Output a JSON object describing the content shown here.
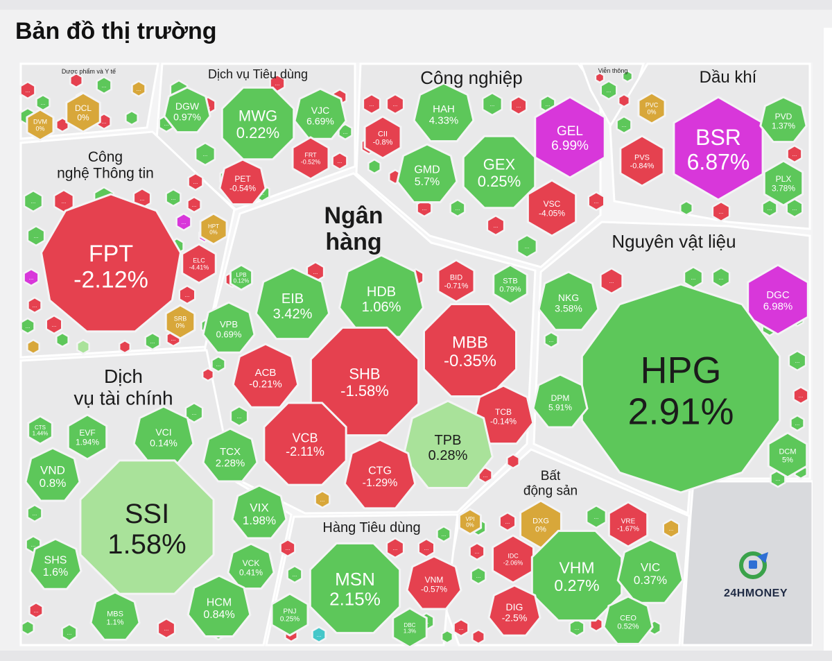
{
  "title": "Bản đồ thị trường",
  "logo": "24HMONEY",
  "colors": {
    "green": "#5dc75a",
    "red": "#e5414f",
    "purple": "#d837da",
    "yellow": "#d8a73a",
    "lightgreen": "#a9e29a",
    "cyan": "#45c7c9",
    "gap": "#f4f4f5"
  },
  "sectors": [
    {
      "id": "duoc-pham",
      "label": "Dược phẩm và Y tế"
    },
    {
      "id": "dich-vu-tieu-dung",
      "label": "Dịch vụ Tiêu dùng"
    },
    {
      "id": "cong-nghiep",
      "label": "Công nghiệp"
    },
    {
      "id": "vien-thong",
      "label": "Viễn thông"
    },
    {
      "id": "dau-khi",
      "label": "Dầu khí"
    },
    {
      "id": "cong-nghe-thong-tin",
      "label": "Công\nnghệ Thông tin"
    },
    {
      "id": "ngan-hang",
      "label": "Ngân\nhàng"
    },
    {
      "id": "nguyen-vat-lieu",
      "label": "Nguyên vật liệu"
    },
    {
      "id": "dich-vu-tai-chinh",
      "label": "Dịch\nvụ tài chính"
    },
    {
      "id": "bat-dong-san",
      "label": "Bất\nđộng sản"
    },
    {
      "id": "hang-tieu-dung",
      "label": "Hàng Tiêu dùng"
    }
  ],
  "tiles": [
    {
      "sector": "duoc-pham",
      "ticker": "DCL",
      "change": "0%",
      "color": "yellow"
    },
    {
      "sector": "duoc-pham",
      "ticker": "DVM",
      "change": "0%",
      "color": "yellow"
    },
    {
      "sector": "dich-vu-tieu-dung",
      "ticker": "DGW",
      "change": "0.97%",
      "color": "green"
    },
    {
      "sector": "dich-vu-tieu-dung",
      "ticker": "MWG",
      "change": "0.22%",
      "color": "green"
    },
    {
      "sector": "dich-vu-tieu-dung",
      "ticker": "VJC",
      "change": "6.69%",
      "color": "green"
    },
    {
      "sector": "dich-vu-tieu-dung",
      "ticker": "FRT",
      "change": "-0.52%",
      "color": "red"
    },
    {
      "sector": "dich-vu-tieu-dung",
      "ticker": "PET",
      "change": "-0.54%",
      "color": "red"
    },
    {
      "sector": "cong-nghiep",
      "ticker": "HAH",
      "change": "4.33%",
      "color": "green"
    },
    {
      "sector": "cong-nghiep",
      "ticker": "CII",
      "change": "-0.8%",
      "color": "red"
    },
    {
      "sector": "cong-nghiep",
      "ticker": "GEL",
      "change": "6.99%",
      "color": "purple"
    },
    {
      "sector": "cong-nghiep",
      "ticker": "GMD",
      "change": "5.7%",
      "color": "green"
    },
    {
      "sector": "cong-nghiep",
      "ticker": "GEX",
      "change": "0.25%",
      "color": "green"
    },
    {
      "sector": "cong-nghiep",
      "ticker": "VSC",
      "change": "-4.05%",
      "color": "red"
    },
    {
      "sector": "dau-khi",
      "ticker": "PVC",
      "change": "0%",
      "color": "yellow"
    },
    {
      "sector": "dau-khi",
      "ticker": "BSR",
      "change": "6.87%",
      "color": "purple"
    },
    {
      "sector": "dau-khi",
      "ticker": "PVD",
      "change": "1.37%",
      "color": "green"
    },
    {
      "sector": "dau-khi",
      "ticker": "PVS",
      "change": "-0.84%",
      "color": "red"
    },
    {
      "sector": "dau-khi",
      "ticker": "PLX",
      "change": "3.78%",
      "color": "green"
    },
    {
      "sector": "cong-nghe-thong-tin",
      "ticker": "FPT",
      "change": "-2.12%",
      "color": "red"
    },
    {
      "sector": "cong-nghe-thong-tin",
      "ticker": "HPT",
      "change": "0%",
      "color": "yellow"
    },
    {
      "sector": "cong-nghe-thong-tin",
      "ticker": "ELC",
      "change": "-4.41%",
      "color": "red"
    },
    {
      "sector": "cong-nghe-thong-tin",
      "ticker": "SRB",
      "change": "0%",
      "color": "yellow"
    },
    {
      "sector": "ngan-hang",
      "ticker": "LPB",
      "change": "0.12%",
      "color": "green"
    },
    {
      "sector": "ngan-hang",
      "ticker": "EIB",
      "change": "3.42%",
      "color": "green"
    },
    {
      "sector": "ngan-hang",
      "ticker": "HDB",
      "change": "1.06%",
      "color": "green"
    },
    {
      "sector": "ngan-hang",
      "ticker": "BID",
      "change": "-0.71%",
      "color": "red"
    },
    {
      "sector": "ngan-hang",
      "ticker": "STB",
      "change": "0.79%",
      "color": "green"
    },
    {
      "sector": "ngan-hang",
      "ticker": "VPB",
      "change": "0.69%",
      "color": "green"
    },
    {
      "sector": "ngan-hang",
      "ticker": "MBB",
      "change": "-0.35%",
      "color": "red"
    },
    {
      "sector": "ngan-hang",
      "ticker": "ACB",
      "change": "-0.21%",
      "color": "red"
    },
    {
      "sector": "ngan-hang",
      "ticker": "SHB",
      "change": "-1.58%",
      "color": "red"
    },
    {
      "sector": "ngan-hang",
      "ticker": "TCB",
      "change": "-0.14%",
      "color": "red"
    },
    {
      "sector": "ngan-hang",
      "ticker": "VCB",
      "change": "-2.11%",
      "color": "red"
    },
    {
      "sector": "ngan-hang",
      "ticker": "TPB",
      "change": "0.28%",
      "color": "lightgreen"
    },
    {
      "sector": "ngan-hang",
      "ticker": "CTG",
      "change": "-1.29%",
      "color": "red"
    },
    {
      "sector": "nguyen-vat-lieu",
      "ticker": "NKG",
      "change": "3.58%",
      "color": "green"
    },
    {
      "sector": "nguyen-vat-lieu",
      "ticker": "DGC",
      "change": "6.98%",
      "color": "purple"
    },
    {
      "sector": "nguyen-vat-lieu",
      "ticker": "HPG",
      "change": "2.91%",
      "color": "green"
    },
    {
      "sector": "nguyen-vat-lieu",
      "ticker": "DPM",
      "change": "5.91%",
      "color": "green"
    },
    {
      "sector": "nguyen-vat-lieu",
      "ticker": "DCM",
      "change": "5%",
      "color": "green"
    },
    {
      "sector": "dich-vu-tai-chinh",
      "ticker": "CTS",
      "change": "1.44%",
      "color": "green"
    },
    {
      "sector": "dich-vu-tai-chinh",
      "ticker": "EVF",
      "change": "1.94%",
      "color": "green"
    },
    {
      "sector": "dich-vu-tai-chinh",
      "ticker": "VCI",
      "change": "0.14%",
      "color": "green"
    },
    {
      "sector": "dich-vu-tai-chinh",
      "ticker": "TCX",
      "change": "2.28%",
      "color": "green"
    },
    {
      "sector": "dich-vu-tai-chinh",
      "ticker": "VND",
      "change": "0.8%",
      "color": "green"
    },
    {
      "sector": "dich-vu-tai-chinh",
      "ticker": "SSI",
      "change": "1.58%",
      "color": "lightgreen"
    },
    {
      "sector": "dich-vu-tai-chinh",
      "ticker": "VIX",
      "change": "1.98%",
      "color": "green"
    },
    {
      "sector": "dich-vu-tai-chinh",
      "ticker": "SHS",
      "change": "1.6%",
      "color": "green"
    },
    {
      "sector": "dich-vu-tai-chinh",
      "ticker": "VCK",
      "change": "0.41%",
      "color": "green"
    },
    {
      "sector": "dich-vu-tai-chinh",
      "ticker": "HCM",
      "change": "0.84%",
      "color": "green"
    },
    {
      "sector": "dich-vu-tai-chinh",
      "ticker": "MBS",
      "change": "1.1%",
      "color": "green"
    },
    {
      "sector": "bat-dong-san",
      "ticker": "VPI",
      "change": "0%",
      "color": "yellow"
    },
    {
      "sector": "bat-dong-san",
      "ticker": "DXG",
      "change": "0%",
      "color": "yellow"
    },
    {
      "sector": "bat-dong-san",
      "ticker": "VRE",
      "change": "-1.67%",
      "color": "red"
    },
    {
      "sector": "bat-dong-san",
      "ticker": "IDC",
      "change": "-2.06%",
      "color": "red"
    },
    {
      "sector": "bat-dong-san",
      "ticker": "VHM",
      "change": "0.27%",
      "color": "green"
    },
    {
      "sector": "bat-dong-san",
      "ticker": "VIC",
      "change": "0.37%",
      "color": "green"
    },
    {
      "sector": "bat-dong-san",
      "ticker": "DIG",
      "change": "-2.5%",
      "color": "red"
    },
    {
      "sector": "bat-dong-san",
      "ticker": "CEO",
      "change": "0.52%",
      "color": "green"
    },
    {
      "sector": "hang-tieu-dung",
      "ticker": "MSN",
      "change": "2.15%",
      "color": "green"
    },
    {
      "sector": "hang-tieu-dung",
      "ticker": "VNM",
      "change": "-0.57%",
      "color": "red"
    },
    {
      "sector": "hang-tieu-dung",
      "ticker": "PNJ",
      "change": "0.25%",
      "color": "green"
    },
    {
      "sector": "hang-tieu-dung",
      "ticker": "DBC",
      "change": "1.3%",
      "color": "green"
    }
  ],
  "small_cells": [
    {
      "sector": "duoc-pham",
      "color": "red"
    },
    {
      "sector": "duoc-pham",
      "color": "green"
    },
    {
      "sector": "duoc-pham",
      "color": "red"
    },
    {
      "sector": "duoc-pham",
      "color": "green"
    },
    {
      "sector": "duoc-pham",
      "color": "yellow"
    },
    {
      "sector": "duoc-pham",
      "color": "green"
    },
    {
      "sector": "duoc-pham",
      "color": "red"
    },
    {
      "sector": "duoc-pham",
      "color": "green"
    },
    {
      "sector": "duoc-pham",
      "color": "red"
    },
    {
      "sector": "duoc-pham",
      "color": "green"
    },
    {
      "sector": "dich-vu-tieu-dung",
      "color": "green"
    },
    {
      "sector": "dich-vu-tieu-dung",
      "color": "green"
    },
    {
      "sector": "dich-vu-tieu-dung",
      "color": "red"
    },
    {
      "sector": "dich-vu-tieu-dung",
      "color": "green"
    },
    {
      "sector": "dich-vu-tieu-dung",
      "color": "red"
    },
    {
      "sector": "dich-vu-tieu-dung",
      "color": "green"
    },
    {
      "sector": "dich-vu-tieu-dung",
      "color": "red"
    },
    {
      "sector": "dich-vu-tieu-dung",
      "color": "green"
    },
    {
      "sector": "dich-vu-tieu-dung",
      "color": "red"
    },
    {
      "sector": "dich-vu-tieu-dung",
      "color": "green"
    },
    {
      "sector": "dich-vu-tieu-dung",
      "color": "red"
    },
    {
      "sector": "dich-vu-tieu-dung",
      "color": "green"
    },
    {
      "sector": "cong-nghiep",
      "color": "red"
    },
    {
      "sector": "cong-nghiep",
      "color": "red"
    },
    {
      "sector": "cong-nghiep",
      "color": "green"
    },
    {
      "sector": "cong-nghiep",
      "color": "red"
    },
    {
      "sector": "cong-nghiep",
      "color": "green"
    },
    {
      "sector": "cong-nghiep",
      "color": "red"
    },
    {
      "sector": "cong-nghiep",
      "color": "green"
    },
    {
      "sector": "cong-nghiep",
      "color": "red"
    },
    {
      "sector": "cong-nghiep",
      "color": "green"
    },
    {
      "sector": "cong-nghiep",
      "color": "red"
    },
    {
      "sector": "cong-nghiep",
      "color": "green"
    },
    {
      "sector": "cong-nghiep",
      "color": "red"
    },
    {
      "sector": "cong-nghiep",
      "color": "red"
    },
    {
      "sector": "cong-nghiep",
      "color": "green"
    },
    {
      "sector": "cong-nghiep",
      "color": "red"
    },
    {
      "sector": "vien-thong",
      "color": "green"
    },
    {
      "sector": "vien-thong",
      "color": "red"
    },
    {
      "sector": "vien-thong",
      "color": "green"
    },
    {
      "sector": "vien-thong",
      "color": "red"
    },
    {
      "sector": "dau-khi",
      "color": "green"
    },
    {
      "sector": "dau-khi",
      "color": "red"
    },
    {
      "sector": "dau-khi",
      "color": "green"
    },
    {
      "sector": "dau-khi",
      "color": "green"
    },
    {
      "sector": "dau-khi",
      "color": "red"
    },
    {
      "sector": "dau-khi",
      "color": "green"
    },
    {
      "sector": "cong-nghe-thong-tin",
      "color": "green"
    },
    {
      "sector": "cong-nghe-thong-tin",
      "color": "red"
    },
    {
      "sector": "cong-nghe-thong-tin",
      "color": "green"
    },
    {
      "sector": "cong-nghe-thong-tin",
      "color": "red"
    },
    {
      "sector": "cong-nghe-thong-tin",
      "color": "green"
    },
    {
      "sector": "cong-nghe-thong-tin",
      "color": "red"
    },
    {
      "sector": "cong-nghe-thong-tin",
      "color": "green"
    },
    {
      "sector": "cong-nghe-thong-tin",
      "color": "purple"
    },
    {
      "sector": "cong-nghe-thong-tin",
      "color": "red"
    },
    {
      "sector": "cong-nghe-thong-tin",
      "color": "green"
    },
    {
      "sector": "cong-nghe-thong-tin",
      "color": "purple"
    },
    {
      "sector": "cong-nghe-thong-tin",
      "color": "red"
    },
    {
      "sector": "cong-nghe-thong-tin",
      "color": "green"
    },
    {
      "sector": "cong-nghe-thong-tin",
      "color": "red"
    },
    {
      "sector": "cong-nghe-thong-tin",
      "color": "green"
    },
    {
      "sector": "cong-nghe-thong-tin",
      "color": "yellow"
    },
    {
      "sector": "cong-nghe-thong-tin",
      "color": "red"
    },
    {
      "sector": "cong-nghe-thong-tin",
      "color": "lightgreen"
    },
    {
      "sector": "cong-nghe-thong-tin",
      "color": "green"
    },
    {
      "sector": "cong-nghe-thong-tin",
      "color": "red"
    },
    {
      "sector": "cong-nghe-thong-tin",
      "color": "purple"
    },
    {
      "sector": "ngan-hang",
      "color": "red"
    },
    {
      "sector": "ngan-hang",
      "color": "red"
    },
    {
      "sector": "ngan-hang",
      "color": "red"
    },
    {
      "sector": "ngan-hang",
      "color": "green"
    },
    {
      "sector": "ngan-hang",
      "color": "green"
    },
    {
      "sector": "ngan-hang",
      "color": "red"
    },
    {
      "sector": "ngan-hang",
      "color": "red"
    },
    {
      "sector": "ngan-hang",
      "color": "red"
    },
    {
      "sector": "ngan-hang",
      "color": "yellow"
    },
    {
      "sector": "nguyen-vat-lieu",
      "color": "red"
    },
    {
      "sector": "nguyen-vat-lieu",
      "color": "green"
    },
    {
      "sector": "nguyen-vat-lieu",
      "color": "green"
    },
    {
      "sector": "nguyen-vat-lieu",
      "color": "green"
    },
    {
      "sector": "nguyen-vat-lieu",
      "color": "red"
    },
    {
      "sector": "nguyen-vat-lieu",
      "color": "green"
    },
    {
      "sector": "nguyen-vat-lieu",
      "color": "green"
    },
    {
      "sector": "nguyen-vat-lieu",
      "color": "green"
    },
    {
      "sector": "nguyen-vat-lieu",
      "color": "green"
    },
    {
      "sector": "nguyen-vat-lieu",
      "color": "green"
    },
    {
      "sector": "nguyen-vat-lieu",
      "color": "green"
    },
    {
      "sector": "nguyen-vat-lieu",
      "color": "green"
    },
    {
      "sector": "dich-vu-tai-chinh",
      "color": "green"
    },
    {
      "sector": "dich-vu-tai-chinh",
      "color": "green"
    },
    {
      "sector": "dich-vu-tai-chinh",
      "color": "green"
    },
    {
      "sector": "dich-vu-tai-chinh",
      "color": "green"
    },
    {
      "sector": "dich-vu-tai-chinh",
      "color": "green"
    },
    {
      "sector": "dich-vu-tai-chinh",
      "color": "red"
    },
    {
      "sector": "dich-vu-tai-chinh",
      "color": "green"
    },
    {
      "sector": "dich-vu-tai-chinh",
      "color": "green"
    },
    {
      "sector": "bat-dong-san",
      "color": "green"
    },
    {
      "sector": "bat-dong-san",
      "color": "red"
    },
    {
      "sector": "bat-dong-san",
      "color": "green"
    },
    {
      "sector": "bat-dong-san",
      "color": "yellow"
    },
    {
      "sector": "bat-dong-san",
      "color": "red"
    },
    {
      "sector": "bat-dong-san",
      "color": "green"
    },
    {
      "sector": "bat-dong-san",
      "color": "green"
    },
    {
      "sector": "bat-dong-san",
      "color": "red"
    },
    {
      "sector": "bat-dong-san",
      "color": "green"
    },
    {
      "sector": "bat-dong-san",
      "color": "green"
    },
    {
      "sector": "hang-tieu-dung",
      "color": "red"
    },
    {
      "sector": "hang-tieu-dung",
      "color": "green"
    },
    {
      "sector": "hang-tieu-dung",
      "color": "red"
    },
    {
      "sector": "hang-tieu-dung",
      "color": "red"
    },
    {
      "sector": "hang-tieu-dung",
      "color": "green"
    },
    {
      "sector": "hang-tieu-dung",
      "color": "green"
    },
    {
      "sector": "hang-tieu-dung",
      "color": "red"
    },
    {
      "sector": "hang-tieu-dung",
      "color": "cyan"
    },
    {
      "sector": "",
      "color": "red"
    },
    {
      "sector": "",
      "color": "green"
    },
    {
      "sector": "",
      "color": "red"
    },
    {
      "sector": "",
      "color": "green"
    },
    {
      "sector": "",
      "color": "red"
    }
  ],
  "more_label": "..."
}
